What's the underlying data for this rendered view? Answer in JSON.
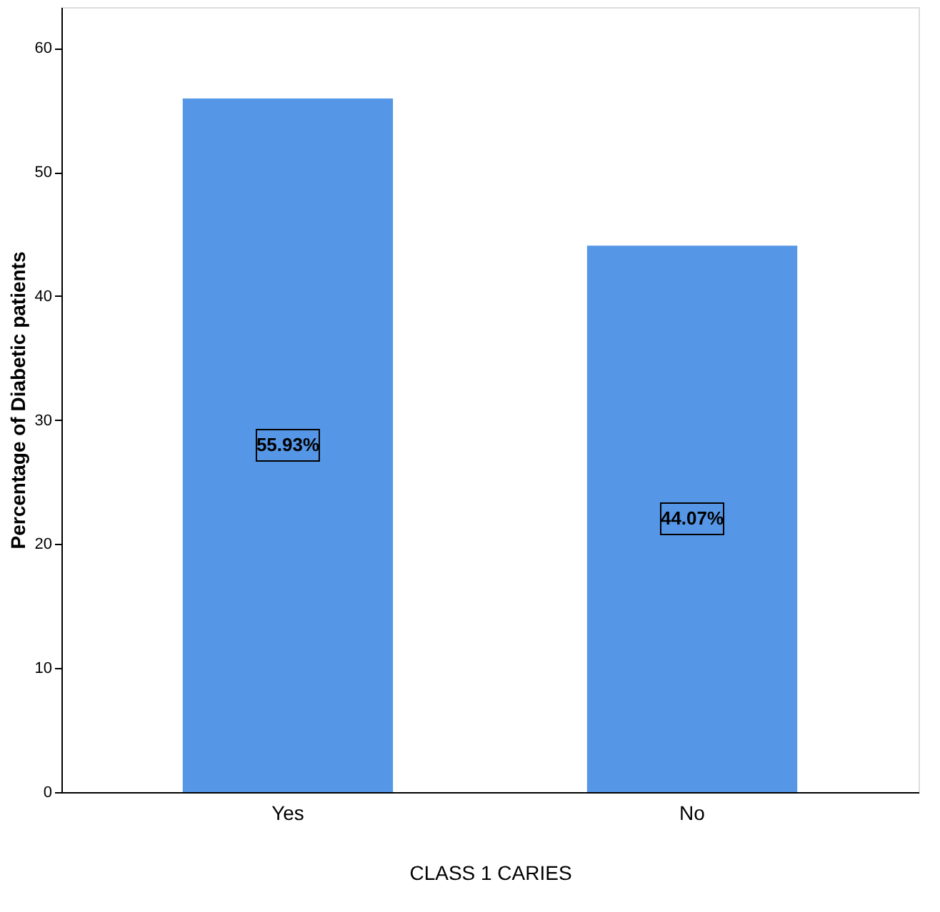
{
  "chart_data": {
    "type": "bar",
    "xlabel": "CLASS 1 CARIES",
    "ylabel": "Percentage of Diabetic patients",
    "categories": [
      "Yes",
      "No"
    ],
    "values": [
      55.93,
      44.07
    ],
    "color": "#5596e6",
    "value_labels": [
      "55.93%",
      "44.07%"
    ],
    "ylim": [
      0,
      63.3
    ],
    "yticks": [
      0,
      10,
      20,
      30,
      40,
      50,
      60
    ],
    "grid": false
  }
}
